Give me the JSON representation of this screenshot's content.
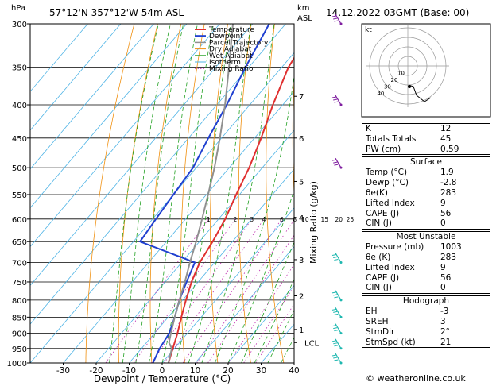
{
  "header": {
    "location": "57°12'N  357°12'W  54m  ASL",
    "datetime": "14.12.2022  03GMT  (Base: 00)",
    "hpa_label": "hPa",
    "km_label": "km\nASL",
    "km_label_line1": "km",
    "km_label_line2": "ASL"
  },
  "chart_data": {
    "type": "line",
    "title": "",
    "xlabel": "Dewpoint / Temperature (°C)",
    "ylabel": "hPa",
    "right_ylabel": "Mixing Ratio (g/kg)",
    "xlim": [
      -40,
      40
    ],
    "ylim": [
      1000,
      300
    ],
    "y_scale": "log",
    "x_ticks": [
      -30,
      -20,
      -10,
      0,
      10,
      20,
      30,
      40
    ],
    "pressure_levels": [
      300,
      350,
      400,
      450,
      500,
      550,
      600,
      650,
      700,
      750,
      800,
      850,
      900,
      950,
      1000
    ],
    "km_ticks": [
      {
        "label": "1",
        "p": 888
      },
      {
        "label": "2",
        "p": 788
      },
      {
        "label": "3",
        "p": 693
      },
      {
        "label": "4",
        "p": 597
      },
      {
        "label": "5",
        "p": 525
      },
      {
        "label": "6",
        "p": 450
      },
      {
        "label": "7",
        "p": 388
      },
      {
        "label": "LCL",
        "p": 930
      }
    ],
    "mixing_ratio_labels": [
      "1",
      "2",
      "3",
      "4",
      "6",
      "8",
      "10",
      "15",
      "20",
      "25"
    ],
    "mixing_ratio_values": [
      1,
      2,
      3,
      4,
      6,
      8,
      10,
      15,
      20,
      25
    ],
    "legend": [
      "Temperature",
      "Dewpoint",
      "Parcel Trajectory",
      "Dry Adiabat",
      "Wet Adiabat",
      "Isotherm",
      "Mixing Ratio"
    ],
    "legend_position": "top-right",
    "series": [
      {
        "name": "Temperature",
        "color": "#e03030",
        "points": [
          [
            1.9,
            1000
          ],
          [
            -0.5,
            950
          ],
          [
            -3,
            900
          ],
          [
            -6,
            850
          ],
          [
            -9,
            800
          ],
          [
            -12,
            750
          ],
          [
            -14.5,
            700
          ],
          [
            -16,
            650
          ],
          [
            -18,
            600
          ],
          [
            -21,
            550
          ],
          [
            -24,
            500
          ],
          [
            -28,
            450
          ],
          [
            -33,
            400
          ],
          [
            -38,
            350
          ],
          [
            -41,
            300
          ]
        ]
      },
      {
        "name": "Dewpoint",
        "color": "#2040d0",
        "points": [
          [
            -2.8,
            1000
          ],
          [
            -4.5,
            950
          ],
          [
            -5.5,
            900
          ],
          [
            -8,
            850
          ],
          [
            -11,
            800
          ],
          [
            -13.5,
            750
          ],
          [
            -16,
            700
          ],
          [
            -38,
            650
          ],
          [
            -39,
            600
          ],
          [
            -40,
            550
          ],
          [
            -41,
            500
          ],
          [
            -44,
            450
          ],
          [
            -47,
            400
          ],
          [
            -51,
            350
          ],
          [
            -55,
            300
          ]
        ]
      },
      {
        "name": "Parcel Trajectory",
        "color": "#909090",
        "points": [
          [
            1.9,
            1000
          ],
          [
            -0.8,
            950
          ],
          [
            -3.2,
            930
          ],
          [
            -5,
            900
          ],
          [
            -8,
            850
          ],
          [
            -11,
            800
          ],
          [
            -14,
            750
          ],
          [
            -17.5,
            700
          ],
          [
            -21,
            650
          ],
          [
            -25,
            600
          ],
          [
            -29.5,
            550
          ],
          [
            -34.5,
            500
          ],
          [
            -40.5,
            450
          ],
          [
            -47.5,
            400
          ],
          [
            -56,
            350
          ],
          [
            -66,
            300
          ]
        ]
      }
    ]
  },
  "wind_barbs": {
    "color_low": "#20b8b0",
    "color_high": "#8020a0",
    "levels": [
      300,
      400,
      500,
      700,
      800,
      850,
      900,
      950,
      1000
    ]
  },
  "hodograph": {
    "label": "kt",
    "ring_labels": [
      "10",
      "20",
      "30",
      "40"
    ]
  },
  "indices": {
    "top": [
      {
        "label": "K",
        "value": "12"
      },
      {
        "label": "Totals Totals",
        "value": "45"
      },
      {
        "label": "PW (cm)",
        "value": "0.59"
      }
    ],
    "surface": {
      "title": "Surface",
      "rows": [
        {
          "label": "Temp (°C)",
          "value": "1.9"
        },
        {
          "label": "Dewp (°C)",
          "value": "-2.8"
        },
        {
          "label": "θe(K)",
          "value": "283"
        },
        {
          "label": "Lifted Index",
          "value": "9"
        },
        {
          "label": "CAPE (J)",
          "value": "56"
        },
        {
          "label": "CIN (J)",
          "value": "0"
        }
      ]
    },
    "most_unstable": {
      "title": "Most Unstable",
      "rows": [
        {
          "label": "Pressure (mb)",
          "value": "1003"
        },
        {
          "label": "θe (K)",
          "value": "283"
        },
        {
          "label": "Lifted Index",
          "value": "9"
        },
        {
          "label": "CAPE (J)",
          "value": "56"
        },
        {
          "label": "CIN (J)",
          "value": "0"
        }
      ]
    },
    "hodograph": {
      "title": "Hodograph",
      "rows": [
        {
          "label": "EH",
          "value": "-3"
        },
        {
          "label": "SREH",
          "value": "3"
        },
        {
          "label": "StmDir",
          "value": "2°"
        },
        {
          "label": "StmSpd (kt)",
          "value": "21"
        }
      ]
    }
  },
  "footer": "© weatheronline.co.uk",
  "colors": {
    "isotherm": "#4fb4e6",
    "dry_adiabat": "#f09010",
    "wet_adiabat": "#20a020",
    "mixing_ratio": "#c030b0",
    "temperature": "#e03030",
    "dewpoint": "#2040d0",
    "parcel": "#909090"
  }
}
